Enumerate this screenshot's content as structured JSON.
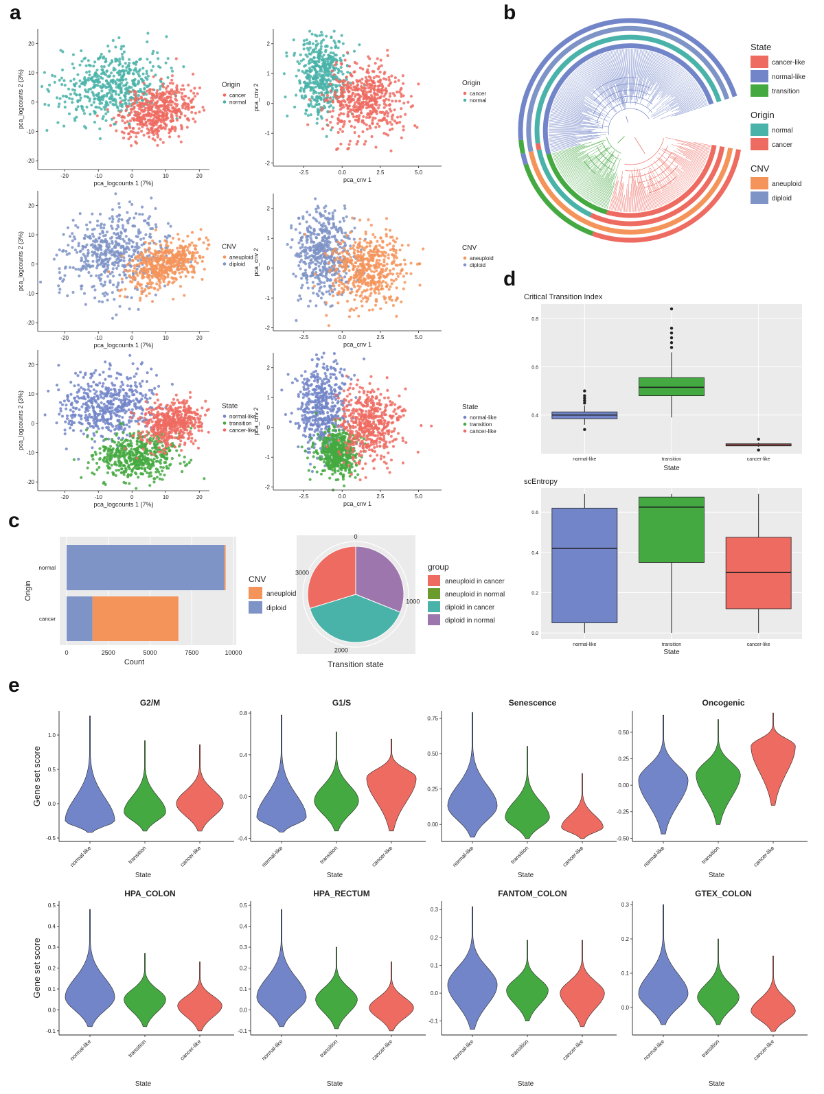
{
  "panel_labels": [
    "a",
    "b",
    "c",
    "d",
    "e"
  ],
  "colors": {
    "cancer": "#ee6b61",
    "normal": "#4ab3a9",
    "aneuploid": "#f5945a",
    "diploid": "#7e93c6",
    "normal-like": "#7285c8",
    "transition": "#44a940",
    "cancer-like": "#ee6b61",
    "diploid_in_normal": "#9e76ae",
    "aneuploid_in_normal": "#6b9a2d",
    "panel_bg": "#ebebeb",
    "grid": "#ffffff"
  },
  "chart_data": [
    {
      "id": "a1",
      "type": "scatter",
      "xlabel": "pca_logcounts 1 (7%)",
      "ylabel": "pca_logcounts 2 (3%)",
      "xticks": [
        "-20",
        "-10",
        "0",
        "10",
        "20"
      ],
      "yticks": [
        "20",
        "10",
        "0",
        "-10",
        "-20"
      ],
      "xlim": [
        -28,
        23
      ],
      "ylim": [
        -23,
        25
      ],
      "legend": {
        "title": "Origin",
        "entries": [
          "cancer",
          "normal"
        ],
        "placement": "right"
      },
      "series": [
        {
          "name": "normal",
          "cx": -6,
          "cy": 6,
          "sx": 8,
          "sy": 6,
          "rot": 0.35
        },
        {
          "name": "cancer",
          "cx": 8,
          "cy": -3,
          "sx": 6,
          "sy": 4,
          "rot": 0.55
        }
      ]
    },
    {
      "id": "a2",
      "type": "scatter",
      "xlabel": "pca_cnv 1",
      "ylabel": "pca_cnv 2",
      "xticks": [
        "-2.5",
        "0.0",
        "2.5",
        "5.0"
      ],
      "yticks": [
        "2",
        "1",
        "0",
        "-1",
        "-2"
      ],
      "xlim": [
        -4.5,
        6.5
      ],
      "ylim": [
        -2.1,
        2.5
      ],
      "legend": {
        "title": "Origin",
        "entries": [
          "cancer",
          "normal"
        ],
        "placement": "right"
      },
      "series": [
        {
          "name": "normal",
          "cx": -1.3,
          "cy": 0.9,
          "sx": 0.8,
          "sy": 0.7,
          "rot": 0
        },
        {
          "name": "cancer",
          "cx": 1.5,
          "cy": 0.1,
          "sx": 1.3,
          "sy": 0.6,
          "rot": 0
        }
      ]
    },
    {
      "id": "a3",
      "type": "scatter",
      "xlabel": "pca_logcounts 1 (7%)",
      "ylabel": "pca_logcounts 2 (3%)",
      "xticks": [
        "-20",
        "-10",
        "0",
        "10",
        "20"
      ],
      "yticks": [
        "20",
        "10",
        "0",
        "-10",
        "-20"
      ],
      "xlim": [
        -28,
        23
      ],
      "ylim": [
        -23,
        25
      ],
      "legend": {
        "title": "CNV",
        "entries": [
          "aneuploid",
          "diploid"
        ],
        "placement": "right"
      },
      "series": [
        {
          "name": "diploid",
          "cx": -6,
          "cy": 4,
          "sx": 8,
          "sy": 7,
          "rot": 0.3
        },
        {
          "name": "aneuploid",
          "cx": 10,
          "cy": 0,
          "sx": 6,
          "sy": 3.5,
          "rot": 0.5
        }
      ]
    },
    {
      "id": "a4",
      "type": "scatter",
      "xlabel": "pca_cnv 1",
      "ylabel": "pca_cnv 2",
      "xticks": [
        "-2.5",
        "0.0",
        "2.5",
        "5.0"
      ],
      "yticks": [
        "2",
        "1",
        "0",
        "-1",
        "-2"
      ],
      "xlim": [
        -4.5,
        6.5
      ],
      "ylim": [
        -2.1,
        2.5
      ],
      "legend": {
        "title": "CNV",
        "entries": [
          "aneuploid",
          "diploid"
        ],
        "placement": "right"
      },
      "series": [
        {
          "name": "diploid",
          "cx": -1.2,
          "cy": 0.5,
          "sx": 0.9,
          "sy": 0.8,
          "rot": 0
        },
        {
          "name": "aneuploid",
          "cx": 1.6,
          "cy": 0.0,
          "sx": 1.2,
          "sy": 0.6,
          "rot": 0
        }
      ]
    },
    {
      "id": "a5",
      "type": "scatter",
      "xlabel": "pca_logcounts 1 (7%)",
      "ylabel": "pca_logcounts 2 (3%)",
      "xticks": [
        "-20",
        "-10",
        "0",
        "10",
        "20"
      ],
      "yticks": [
        "20",
        "10",
        "0",
        "-10",
        "-20"
      ],
      "xlim": [
        -28,
        23
      ],
      "ylim": [
        -23,
        25
      ],
      "legend": {
        "title": "State",
        "entries": [
          "normal-like",
          "transition",
          "cancer-like"
        ],
        "placement": "right"
      },
      "series": [
        {
          "name": "normal-like",
          "cx": -7,
          "cy": 6,
          "sx": 7,
          "sy": 6,
          "rot": 0.3
        },
        {
          "name": "transition",
          "cx": 1,
          "cy": -11,
          "sx": 6,
          "sy": 4,
          "rot": 0.1
        },
        {
          "name": "cancer-like",
          "cx": 12,
          "cy": 0,
          "sx": 5,
          "sy": 3.5,
          "rot": 0.5
        }
      ]
    },
    {
      "id": "a6",
      "type": "scatter",
      "xlabel": "pca_cnv 1",
      "ylabel": "pca_cnv 2",
      "xticks": [
        "-2.5",
        "0.0",
        "2.5",
        "5.0"
      ],
      "yticks": [
        "2",
        "1",
        "0",
        "-1",
        "-2"
      ],
      "xlim": [
        -4.5,
        6.5
      ],
      "ylim": [
        -2.1,
        2.5
      ],
      "legend": {
        "title": "State",
        "entries": [
          "normal-like",
          "transition",
          "cancer-like"
        ],
        "placement": "right"
      },
      "series": [
        {
          "name": "normal-like",
          "cx": -1.3,
          "cy": 0.6,
          "sx": 0.8,
          "sy": 0.8,
          "rot": 0
        },
        {
          "name": "transition",
          "cx": -0.3,
          "cy": -0.8,
          "sx": 0.7,
          "sy": 0.4,
          "rot": 0
        },
        {
          "name": "cancer-like",
          "cx": 1.8,
          "cy": 0.1,
          "sx": 1.0,
          "sy": 0.6,
          "rot": 0
        }
      ]
    },
    {
      "id": "b",
      "type": "dendrogram",
      "legends": [
        {
          "title": "State",
          "entries": [
            "cancer-like",
            "normal-like",
            "transition"
          ]
        },
        {
          "title": "Origin",
          "entries": [
            "normal",
            "cancer"
          ]
        },
        {
          "title": "CNV",
          "entries": [
            "aneuploid",
            "diploid"
          ]
        }
      ]
    },
    {
      "id": "c1",
      "type": "bar",
      "orientation": "horizontal",
      "stacked": true,
      "categories": [
        "normal",
        "cancer"
      ],
      "xlabel": "Count",
      "ylabel": "Origin",
      "xticks": [
        "0",
        "2500",
        "5000",
        "7500",
        "10000"
      ],
      "xlim": [
        0,
        10000
      ],
      "series": [
        {
          "name": "diploid",
          "values": [
            9450,
            1550
          ]
        },
        {
          "name": "aneuploid",
          "values": [
            80,
            5150
          ]
        }
      ],
      "legend": {
        "title": "CNV",
        "entries": [
          "aneuploid",
          "diploid"
        ],
        "placement": "right"
      }
    },
    {
      "id": "c2",
      "type": "pie",
      "xlabel": "Transition state",
      "ticks": [
        "0",
        "1000",
        "2000",
        "3000"
      ],
      "total": 3700,
      "slices": [
        {
          "name": "diploid in normal",
          "value": 1150
        },
        {
          "name": "diploid in cancer",
          "value": 1450
        },
        {
          "name": "aneuploid in cancer",
          "value": 1100
        }
      ],
      "legend": {
        "title": "group",
        "entries": [
          "aneuploid in cancer",
          "aneuploid in normal",
          "diploid in cancer",
          "diploid in normal"
        ],
        "placement": "right"
      }
    },
    {
      "id": "d1",
      "type": "box",
      "title": "Critical Transition Index",
      "xlabel": "State",
      "categories": [
        "normal-like",
        "transition",
        "cancer-like"
      ],
      "yticks": [
        "0.4",
        "0.6",
        "0.8"
      ],
      "ylim": [
        0.24,
        0.86
      ],
      "boxes": [
        {
          "q1": 0.385,
          "median": 0.4,
          "q3": 0.413,
          "lo": 0.36,
          "hi": 0.44,
          "outliers": [
            0.34,
            0.45,
            0.46,
            0.47,
            0.48,
            0.5
          ]
        },
        {
          "q1": 0.48,
          "median": 0.515,
          "q3": 0.555,
          "lo": 0.39,
          "hi": 0.66,
          "outliers": [
            0.68,
            0.7,
            0.72,
            0.74,
            0.76,
            0.84
          ]
        },
        {
          "q1": 0.272,
          "median": 0.276,
          "q3": 0.281,
          "lo": 0.268,
          "hi": 0.286,
          "outliers": [
            0.255,
            0.3
          ]
        }
      ]
    },
    {
      "id": "d2",
      "type": "box",
      "title": "scEntropy",
      "xlabel": "State",
      "categories": [
        "normal-like",
        "transition",
        "cancer-like"
      ],
      "yticks": [
        "0.0",
        "0.2",
        "0.4",
        "0.6"
      ],
      "ylim": [
        -0.03,
        0.72
      ],
      "boxes": [
        {
          "q1": 0.05,
          "median": 0.42,
          "q3": 0.62,
          "lo": 0.0,
          "hi": 0.69,
          "outliers": []
        },
        {
          "q1": 0.35,
          "median": 0.625,
          "q3": 0.675,
          "lo": 0.0,
          "hi": 0.69,
          "outliers": []
        },
        {
          "q1": 0.12,
          "median": 0.3,
          "q3": 0.475,
          "lo": 0.0,
          "hi": 0.69,
          "outliers": []
        }
      ]
    },
    {
      "id": "e",
      "type": "violin",
      "xlabel": "State",
      "ylabel": "Gene set score",
      "categories": [
        "normal-like",
        "transition",
        "cancer-like"
      ],
      "panels": [
        {
          "title": "G2/M",
          "yticks": [
            "-0.5",
            "0.0",
            "0.5",
            "1.0"
          ],
          "ylim": [
            -0.55,
            1.35
          ],
          "violins": [
            {
              "min": -0.42,
              "max": 1.28,
              "mode": -0.25,
              "w": 0.95,
              "skew": 0.55
            },
            {
              "min": -0.4,
              "max": 0.92,
              "mode": -0.12,
              "w": 0.8,
              "skew": 0.5
            },
            {
              "min": -0.4,
              "max": 0.86,
              "mode": 0.0,
              "w": 0.9,
              "skew": 0.5
            }
          ]
        },
        {
          "title": "G1/S",
          "yticks": [
            "-0.4",
            "0.0",
            "0.4",
            "0.8"
          ],
          "ylim": [
            -0.43,
            0.82
          ],
          "violins": [
            {
              "min": -0.34,
              "max": 0.78,
              "mode": -0.2,
              "w": 0.95,
              "skew": 0.55
            },
            {
              "min": -0.33,
              "max": 0.62,
              "mode": -0.04,
              "w": 0.85,
              "skew": 0.5
            },
            {
              "min": -0.33,
              "max": 0.55,
              "mode": 0.18,
              "w": 0.95,
              "skew": 0.5
            }
          ]
        },
        {
          "title": "Senescence",
          "yticks": [
            "0.00",
            "0.25",
            "0.50",
            "0.75"
          ],
          "ylim": [
            -0.12,
            0.8
          ],
          "violins": [
            {
              "min": -0.09,
              "max": 0.79,
              "mode": 0.13,
              "w": 0.95,
              "skew": 0.5
            },
            {
              "min": -0.1,
              "max": 0.55,
              "mode": 0.05,
              "w": 0.85,
              "skew": 0.5
            },
            {
              "min": -0.1,
              "max": 0.36,
              "mode": -0.02,
              "w": 0.8,
              "skew": 0.5
            }
          ]
        },
        {
          "title": "Oncogenic",
          "yticks": [
            "-0.50",
            "-0.25",
            "0.00",
            "0.25",
            "0.50"
          ],
          "ylim": [
            -0.53,
            0.7
          ],
          "violins": [
            {
              "min": -0.46,
              "max": 0.66,
              "mode": 0.05,
              "w": 0.95,
              "skew": 0.5
            },
            {
              "min": -0.37,
              "max": 0.62,
              "mode": 0.1,
              "w": 0.85,
              "skew": 0.5
            },
            {
              "min": -0.19,
              "max": 0.68,
              "mode": 0.37,
              "w": 0.85,
              "skew": 0.5
            }
          ]
        },
        {
          "title": "HPA_COLON",
          "yticks": [
            "-0.1",
            "0.0",
            "0.1",
            "0.2",
            "0.3",
            "0.4",
            "0.5"
          ],
          "ylim": [
            -0.12,
            0.52
          ],
          "violins": [
            {
              "min": -0.08,
              "max": 0.48,
              "mode": 0.06,
              "w": 0.95,
              "skew": 0.5
            },
            {
              "min": -0.08,
              "max": 0.27,
              "mode": 0.05,
              "w": 0.8,
              "skew": 0.5
            },
            {
              "min": -0.1,
              "max": 0.23,
              "mode": 0.02,
              "w": 0.85,
              "skew": 0.5
            }
          ]
        },
        {
          "title": "HPA_RECTUM",
          "yticks": [
            "-0.1",
            "0.0",
            "0.1",
            "0.2",
            "0.3",
            "0.4",
            "0.5"
          ],
          "ylim": [
            -0.12,
            0.52
          ],
          "violins": [
            {
              "min": -0.08,
              "max": 0.48,
              "mode": 0.06,
              "w": 0.95,
              "skew": 0.5
            },
            {
              "min": -0.09,
              "max": 0.3,
              "mode": 0.05,
              "w": 0.8,
              "skew": 0.5
            },
            {
              "min": -0.1,
              "max": 0.23,
              "mode": 0.01,
              "w": 0.85,
              "skew": 0.5
            }
          ]
        },
        {
          "title": "FANTOM_COLON",
          "yticks": [
            "-0.1",
            "0.0",
            "0.1",
            "0.2",
            "0.3"
          ],
          "ylim": [
            -0.15,
            0.33
          ],
          "violins": [
            {
              "min": -0.13,
              "max": 0.31,
              "mode": 0.03,
              "w": 0.95,
              "skew": 0.5
            },
            {
              "min": -0.1,
              "max": 0.19,
              "mode": 0.01,
              "w": 0.8,
              "skew": 0.5
            },
            {
              "min": -0.12,
              "max": 0.19,
              "mode": 0.0,
              "w": 0.85,
              "skew": 0.5
            }
          ]
        },
        {
          "title": "GTEX_COLON",
          "yticks": [
            "0.0",
            "0.1",
            "0.2",
            "0.3"
          ],
          "ylim": [
            -0.08,
            0.31
          ],
          "violins": [
            {
              "min": -0.05,
              "max": 0.3,
              "mode": 0.04,
              "w": 0.95,
              "skew": 0.5
            },
            {
              "min": -0.05,
              "max": 0.2,
              "mode": 0.03,
              "w": 0.8,
              "skew": 0.5
            },
            {
              "min": -0.07,
              "max": 0.15,
              "mode": -0.01,
              "w": 0.85,
              "skew": 0.5
            }
          ]
        }
      ]
    }
  ]
}
